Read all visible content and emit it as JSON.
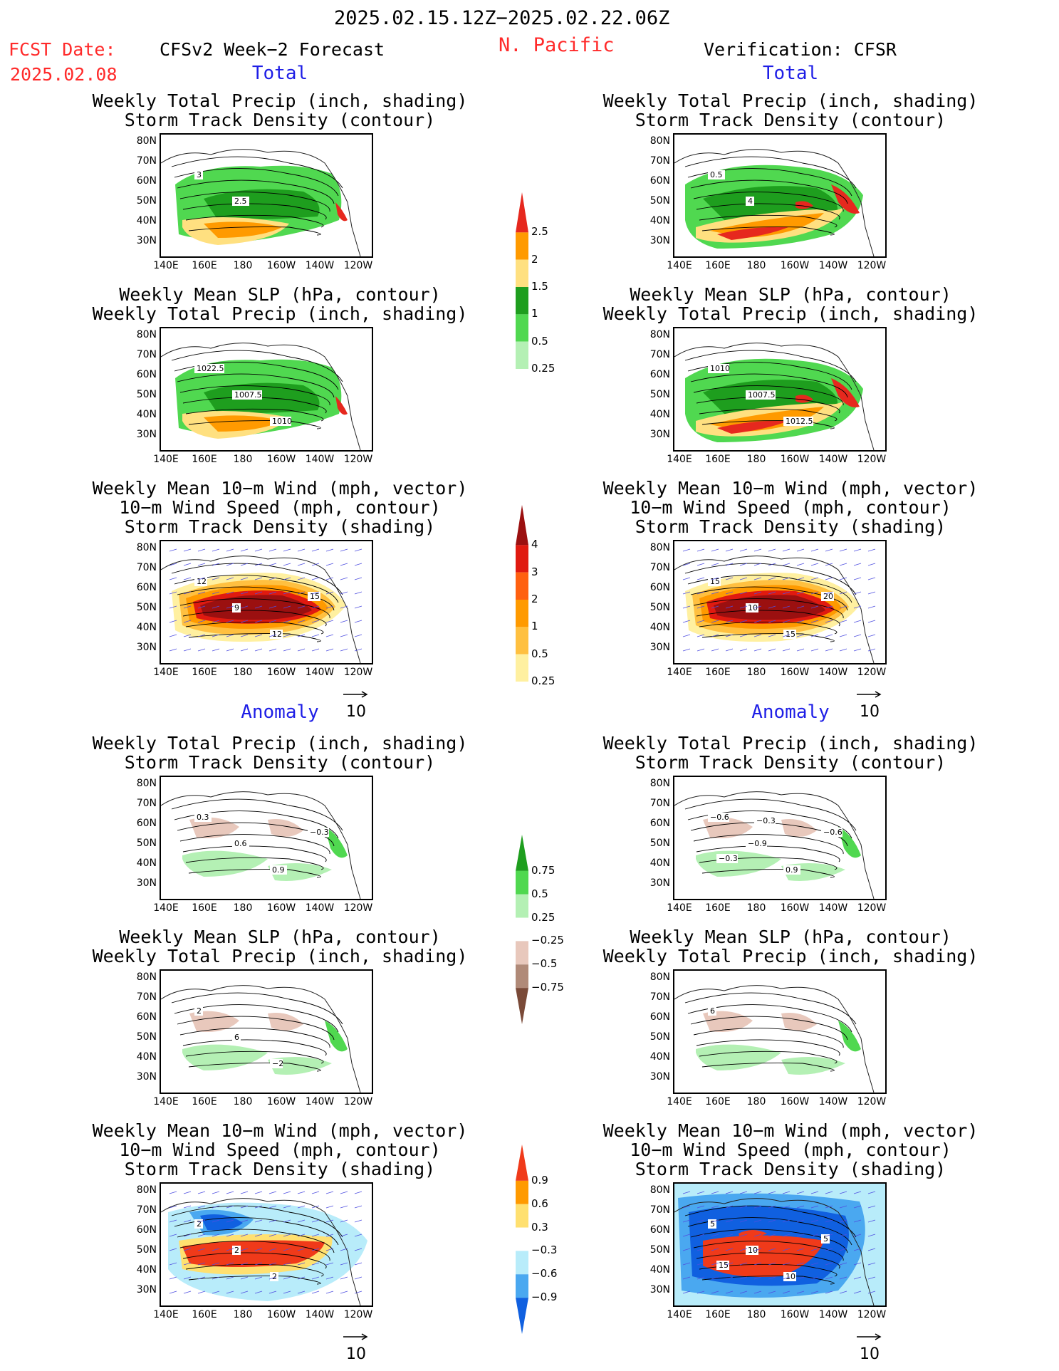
{
  "header": {
    "period": "2025.02.15.12Z−2025.02.22.06Z",
    "fcst_label": "FCST Date:",
    "fcst_date": "2025.02.08",
    "forecast_label": "CFSv2 Week−2 Forecast",
    "region": "N. Pacific",
    "verification_label": "Verification: CFSR"
  },
  "sections": {
    "total": "Total",
    "anomaly": "Anomaly"
  },
  "axes": {
    "lat_ticks": [
      "80N",
      "70N",
      "60N",
      "50N",
      "40N",
      "30N"
    ],
    "lon_ticks": [
      "140E",
      "160E",
      "180",
      "160W",
      "140W",
      "120W"
    ]
  },
  "panels": [
    {
      "id": "fc-total-precip",
      "title1": "Weekly Total Precip (inch, shading)",
      "title2": "Storm Track Density (contour)",
      "title3": "",
      "theme": "precip-total"
    },
    {
      "id": "fc-total-slp",
      "title1": "Weekly Mean SLP (hPa, contour)",
      "title2": "Weekly Total Precip (inch, shading)",
      "title3": "",
      "theme": "precip-total"
    },
    {
      "id": "fc-total-wind",
      "title1": "Weekly Mean 10−m Wind (mph, vector)",
      "title2": "10−m Wind Speed (mph, contour)",
      "title3": "Storm Track Density (shading)",
      "theme": "storm-total"
    },
    {
      "id": "vf-total-precip",
      "title1": "Weekly Total Precip (inch, shading)",
      "title2": "Storm Track Density (contour)",
      "title3": "",
      "theme": "precip-total-v"
    },
    {
      "id": "vf-total-slp",
      "title1": "Weekly Mean SLP (hPa, contour)",
      "title2": "Weekly Total Precip (inch, shading)",
      "title3": "",
      "theme": "precip-total-v"
    },
    {
      "id": "vf-total-wind",
      "title1": "Weekly Mean 10−m Wind (mph, vector)",
      "title2": "10−m Wind Speed (mph, contour)",
      "title3": "Storm Track Density (shading)",
      "theme": "storm-total"
    },
    {
      "id": "fc-anom-precip",
      "title1": "Weekly Total Precip (inch, shading)",
      "title2": "Storm Track Density (contour)",
      "title3": "",
      "theme": "precip-anom"
    },
    {
      "id": "fc-anom-slp",
      "title1": "Weekly Mean SLP (hPa, contour)",
      "title2": "Weekly Total Precip (inch, shading)",
      "title3": "",
      "theme": "precip-anom"
    },
    {
      "id": "fc-anom-wind",
      "title1": "Weekly Mean 10−m Wind (mph, vector)",
      "title2": "10−m Wind Speed (mph, contour)",
      "title3": "Storm Track Density (shading)",
      "theme": "storm-anom"
    },
    {
      "id": "vf-anom-precip",
      "title1": "Weekly Total Precip (inch, shading)",
      "title2": "Storm Track Density (contour)",
      "title3": "",
      "theme": "precip-anom"
    },
    {
      "id": "vf-anom-slp",
      "title1": "Weekly Mean SLP (hPa, contour)",
      "title2": "Weekly Total Precip (inch, shading)",
      "title3": "",
      "theme": "precip-anom"
    },
    {
      "id": "vf-anom-wind",
      "title1": "Weekly Mean 10−m Wind (mph, vector)",
      "title2": "10−m Wind Speed (mph, contour)",
      "title3": "Storm Track Density (shading)",
      "theme": "storm-anom-v"
    }
  ],
  "contour_labels": {
    "fc-total-precip": [
      "3",
      "2.5"
    ],
    "fc-total-slp": [
      "1022.5",
      "1007.5",
      "1010"
    ],
    "fc-total-wind": [
      "12",
      "9",
      "12",
      "15"
    ],
    "vf-total-precip": [
      "0.5",
      "4"
    ],
    "vf-total-slp": [
      "1010",
      "1007.5",
      "1012.5"
    ],
    "vf-total-wind": [
      "15",
      "10",
      "15",
      "20"
    ],
    "fc-anom-precip": [
      "0.3",
      "0.6",
      "0.9",
      "−0.3"
    ],
    "fc-anom-slp": [
      "2",
      "6",
      "−2"
    ],
    "fc-anom-wind": [
      "2",
      "2",
      "2"
    ],
    "vf-anom-precip": [
      "−0.6",
      "−0.9",
      "0.9",
      "−0.6",
      "−0.3",
      "−0.3"
    ],
    "vf-anom-slp": [
      "6"
    ],
    "vf-anom-wind": [
      "5",
      "10",
      "10",
      "5",
      "15"
    ]
  },
  "colorbars": {
    "precip_total": {
      "labels": [
        "2.5",
        "2",
        "1.5",
        "1",
        "0.5",
        "0.25"
      ],
      "colors": [
        "#e6281e",
        "#ff9a00",
        "#ffe080",
        "#1e9e1e",
        "#50d850",
        "#b4f0b4"
      ]
    },
    "storm_total": {
      "labels": [
        "4",
        "3",
        "2",
        "1",
        "0.5",
        "0.25"
      ],
      "colors": [
        "#9b1010",
        "#e01a10",
        "#ff6010",
        "#ff9a00",
        "#ffc040",
        "#fff0a0"
      ]
    },
    "precip_anom": {
      "labels": [
        "0.75",
        "0.5",
        "0.25",
        "−0.25",
        "−0.5",
        "−0.75"
      ],
      "colors": [
        "#1e9e1e",
        "#50d850",
        "#b4f0b4",
        "#ffffff",
        "#e8c8bc",
        "#b08a78",
        "#7a4a38"
      ]
    },
    "storm_anom": {
      "labels": [
        "0.9",
        "0.6",
        "0.3",
        "−0.3",
        "−0.6",
        "−0.9"
      ],
      "colors": [
        "#f03a1a",
        "#ff9a00",
        "#ffe070",
        "#ffffff",
        "#b8ecfa",
        "#4aa8f0",
        "#1060e0"
      ]
    }
  },
  "vector_ref": "10"
}
